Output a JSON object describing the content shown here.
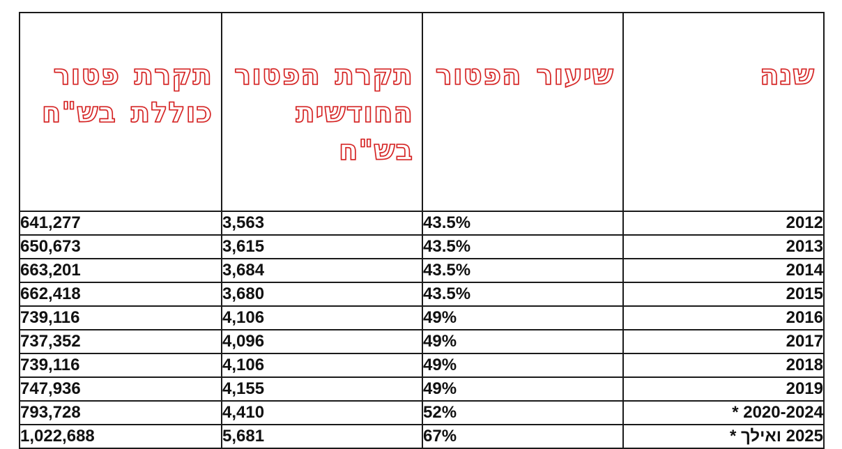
{
  "headers": {
    "year": "שנה",
    "rate": "שיעור הפטור",
    "monthly": "תקרת הפטור החודשית בש\"ח",
    "total": "תקרת פטור כוללת בש\"ח"
  },
  "colors": {
    "header_outline": "#d41f1f",
    "text": "#111111",
    "border": "#1a1a1a"
  },
  "rows": [
    {
      "year": "2012",
      "rate": "43.5%",
      "monthly": "3,563",
      "total": "641,277"
    },
    {
      "year": "2013",
      "rate": "43.5%",
      "monthly": "3,615",
      "total": "650,673"
    },
    {
      "year": "2014",
      "rate": "43.5%",
      "monthly": "3,684",
      "total": "663,201"
    },
    {
      "year": "2015",
      "rate": "43.5%",
      "monthly": "3,680",
      "total": "662,418"
    },
    {
      "year": "2016",
      "rate": "49%",
      "monthly": "4,106",
      "total": "739,116"
    },
    {
      "year": "2017",
      "rate": "49%",
      "monthly": "4,096",
      "total": "737,352"
    },
    {
      "year": "2018",
      "rate": "49%",
      "monthly": "4,106",
      "total": "739,116"
    },
    {
      "year": "2019",
      "rate": "49%",
      "monthly": "4,155",
      "total": "747,936"
    },
    {
      "year": "2020-2024 *",
      "rate": "52%",
      "monthly": "4,410",
      "total": "793,728"
    },
    {
      "year": "2025 ואילך *",
      "rate": "67%",
      "monthly": "5,681",
      "total": "1,022,688"
    }
  ]
}
